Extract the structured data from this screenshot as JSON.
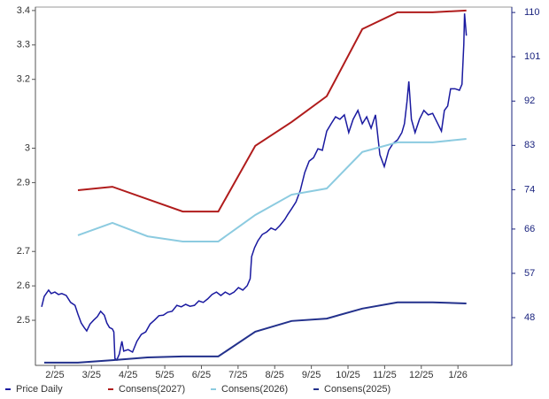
{
  "chart_data": {
    "type": "line",
    "xlim": [
      0.47,
      13.47
    ],
    "xticks": [
      {
        "value": 1,
        "label": "2/25"
      },
      {
        "value": 2,
        "label": "3/25"
      },
      {
        "value": 3,
        "label": "4/25"
      },
      {
        "value": 4,
        "label": "5/25"
      },
      {
        "value": 5,
        "label": "6/25"
      },
      {
        "value": 6,
        "label": "7/25"
      },
      {
        "value": 7,
        "label": "8/25"
      },
      {
        "value": 8,
        "label": "9/25"
      },
      {
        "value": 9,
        "label": "10/25"
      },
      {
        "value": 10,
        "label": "11/25"
      },
      {
        "value": 11,
        "label": "12/25"
      },
      {
        "value": 12,
        "label": "1/26"
      }
    ],
    "ylim": [
      2.369,
      3.41
    ],
    "yticks": [
      3.4,
      3.3,
      3.2,
      3.0,
      2.9,
      2.7,
      2.6,
      2.5
    ],
    "y2lim": [
      38.3,
      111.1
    ],
    "y2ticks": [
      110,
      101,
      92,
      83,
      74,
      66,
      57,
      48
    ],
    "series": [
      {
        "name": "Price Daily",
        "color": "#1a1aa0",
        "axis": "y2",
        "x": [
          0.64,
          0.71,
          0.83,
          0.9,
          1.0,
          1.1,
          1.19,
          1.31,
          1.43,
          1.55,
          1.63,
          1.72,
          1.8,
          1.87,
          1.96,
          2.06,
          2.16,
          2.25,
          2.35,
          2.42,
          2.49,
          2.57,
          2.61,
          2.64,
          2.69,
          2.76,
          2.83,
          2.88,
          3.0,
          3.12,
          3.24,
          3.36,
          3.48,
          3.6,
          3.72,
          3.84,
          3.96,
          4.08,
          4.2,
          4.33,
          4.45,
          4.57,
          4.69,
          4.81,
          4.93,
          5.05,
          5.17,
          5.29,
          5.41,
          5.53,
          5.65,
          5.77,
          5.89,
          6.01,
          6.13,
          6.25,
          6.33,
          6.37,
          6.45,
          6.54,
          6.66,
          6.78,
          6.9,
          7.02,
          7.14,
          7.27,
          7.36,
          7.46,
          7.58,
          7.7,
          7.82,
          7.94,
          8.06,
          8.18,
          8.3,
          8.42,
          8.54,
          8.66,
          8.78,
          8.9,
          9.02,
          9.14,
          9.27,
          9.39,
          9.51,
          9.63,
          9.75,
          9.87,
          9.99,
          10.11,
          10.23,
          10.35,
          10.47,
          10.54,
          10.61,
          10.66,
          10.73,
          10.83,
          10.95,
          11.07,
          11.19,
          11.31,
          11.43,
          11.55,
          11.63,
          11.72,
          11.8,
          11.92,
          12.04,
          12.11,
          12.16,
          12.18,
          12.23
        ],
        "values": [
          50.2,
          52.3,
          53.6,
          52.9,
          53.2,
          52.7,
          52.9,
          52.5,
          51.1,
          50.5,
          48.7,
          46.9,
          46.0,
          45.3,
          46.7,
          47.5,
          48.2,
          49.3,
          48.5,
          46.9,
          46.0,
          45.7,
          45.1,
          39.7,
          39.4,
          40.6,
          43.2,
          41.2,
          41.5,
          41.0,
          43.2,
          44.6,
          45.1,
          46.7,
          47.5,
          48.4,
          48.5,
          49.1,
          49.3,
          50.5,
          50.2,
          50.7,
          50.3,
          50.5,
          51.4,
          51.1,
          51.8,
          52.7,
          53.2,
          52.5,
          53.2,
          52.7,
          53.2,
          54.1,
          53.6,
          54.5,
          55.9,
          60.4,
          62.2,
          63.6,
          64.9,
          65.4,
          66.2,
          65.8,
          66.7,
          67.9,
          69.0,
          70.1,
          71.5,
          73.9,
          77.5,
          79.8,
          80.5,
          82.3,
          82.0,
          85.9,
          87.4,
          88.8,
          88.3,
          89.2,
          85.6,
          88.3,
          90.1,
          87.4,
          88.8,
          86.5,
          89.2,
          81.1,
          78.7,
          82.0,
          83.4,
          84.1,
          85.6,
          87.4,
          91.9,
          96.0,
          88.3,
          85.6,
          88.3,
          90.1,
          89.2,
          89.5,
          87.7,
          85.9,
          90.1,
          91.0,
          94.5,
          94.5,
          94.2,
          95.4,
          103.5,
          109.8,
          105.3
        ]
      },
      {
        "name": "Consens(2027)",
        "color": "#b01c1c",
        "x": [
          1.63,
          2.57,
          4.49,
          5.46,
          6.47,
          7.46,
          8.42,
          9.39,
          10.35,
          11.31,
          12.23
        ],
        "values": [
          2.878,
          2.888,
          2.816,
          2.816,
          3.007,
          3.076,
          3.151,
          3.346,
          3.395,
          3.395,
          3.4
        ]
      },
      {
        "name": "Consens(2026)",
        "color": "#8ccbe0",
        "x": [
          1.63,
          2.57,
          3.53,
          4.49,
          5.46,
          6.47,
          7.46,
          8.42,
          9.39,
          10.35,
          11.31,
          12.23
        ],
        "values": [
          2.747,
          2.783,
          2.744,
          2.729,
          2.729,
          2.806,
          2.865,
          2.883,
          2.989,
          3.017,
          3.017,
          3.027
        ]
      },
      {
        "name": "Consens(2025)",
        "color": "#23318c",
        "x": [
          0.71,
          1.63,
          2.57,
          3.53,
          4.49,
          5.46,
          6.47,
          7.46,
          8.42,
          9.39,
          10.35,
          11.31,
          12.23
        ],
        "values": [
          2.377,
          2.377,
          2.384,
          2.392,
          2.395,
          2.395,
          2.467,
          2.498,
          2.505,
          2.534,
          2.552,
          2.552,
          2.549
        ]
      }
    ]
  }
}
